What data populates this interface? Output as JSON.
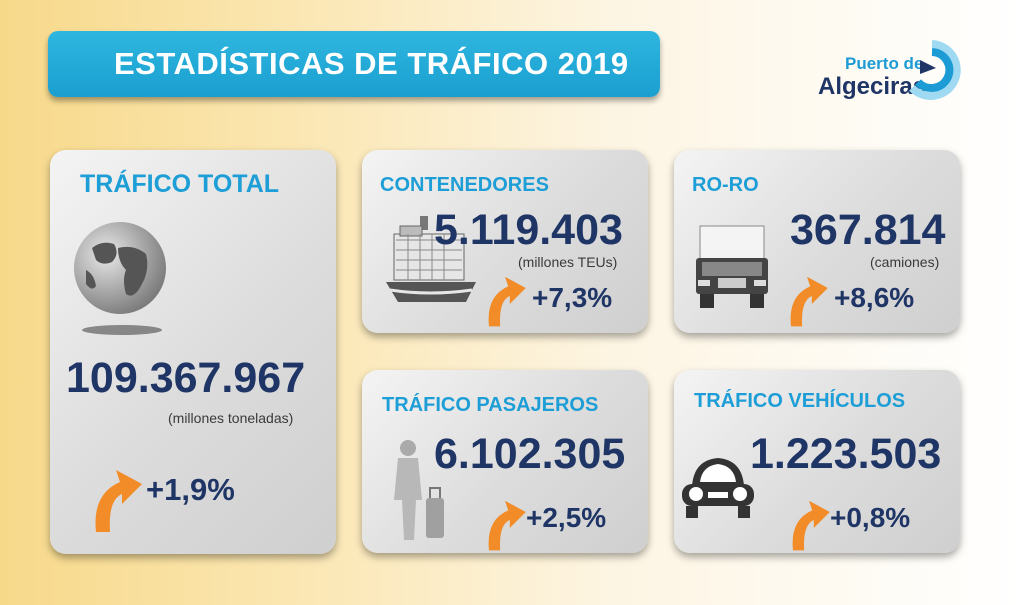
{
  "header": {
    "title": "ESTADÍSTICAS DE TRÁFICO 2019"
  },
  "logo": {
    "line1": "Puerto de",
    "line2": "Algeciras"
  },
  "cards": {
    "total": {
      "heading": "TRÁFICO TOTAL",
      "value": "109.367.967",
      "unit": "(millones toneladas)",
      "change": "+1,9%"
    },
    "containers": {
      "heading": "CONTENEDORES",
      "value": "5.119.403",
      "unit": "(millones TEUs)",
      "change": "+7,3%"
    },
    "roro": {
      "heading": "RO-RO",
      "value": "367.814",
      "unit": "(camiones)",
      "change": "+8,6%"
    },
    "passengers": {
      "heading": "TRÁFICO PASAJEROS",
      "value": "6.102.305",
      "change": "+2,5%"
    },
    "vehicles": {
      "heading": "TRÁFICO VEHÍCULOS",
      "value": "1.223.503",
      "change": "+0,8%"
    }
  },
  "colors": {
    "accent": "#1e9ed6",
    "navy": "#1f3566",
    "arrow": "#f28c28"
  }
}
